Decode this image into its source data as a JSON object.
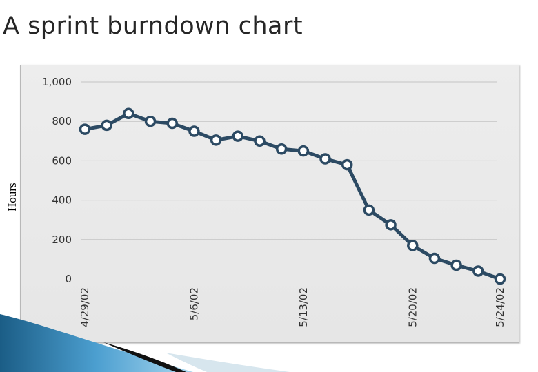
{
  "slide": {
    "title": "A sprint burndown chart"
  },
  "chart_data": {
    "type": "line",
    "ylabel": "Hours",
    "xlabel": "",
    "ylim": [
      0,
      1000
    ],
    "yticks": [
      0,
      200,
      400,
      600,
      800,
      1000
    ],
    "ytick_labels": [
      "0",
      "200",
      "400",
      "600",
      "800",
      "1,000"
    ],
    "xtick_labels": [
      {
        "index": 0,
        "label": "4/29/02"
      },
      {
        "index": 5,
        "label": "5/6/02"
      },
      {
        "index": 10,
        "label": "5/13/02"
      },
      {
        "index": 15,
        "label": "5/20/02"
      },
      {
        "index": 19,
        "label": "5/24/02"
      }
    ],
    "grid": true,
    "series": [
      {
        "values": [
          760,
          780,
          840,
          800,
          790,
          750,
          705,
          725,
          700,
          660,
          650,
          610,
          580,
          350,
          275,
          170,
          105,
          70,
          40,
          0
        ],
        "color": "#2c4a63"
      }
    ]
  }
}
